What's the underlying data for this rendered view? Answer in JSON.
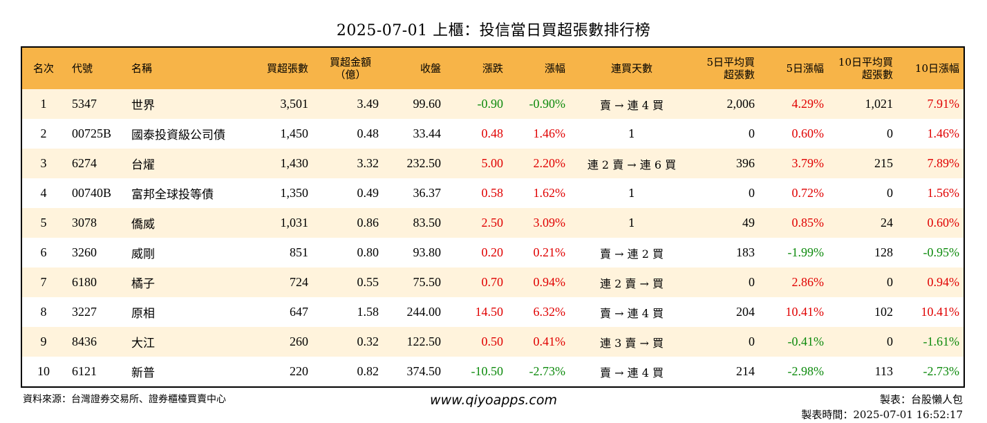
{
  "title": "2025-07-01 上櫃：投信當日買超張數排行榜",
  "colors": {
    "header_bg": "#f7b448",
    "row_alt_bg": "#fff3dc",
    "up": "#e00000",
    "down": "#0c8a0c"
  },
  "headers": {
    "rank": "名次",
    "code": "代號",
    "name": "名稱",
    "net_buy_lots": "買超張數",
    "net_buy_amount": "買超金額（億）",
    "close": "收盤",
    "change": "漲跌",
    "change_pct": "漲幅",
    "consecutive_days": "連買天數",
    "avg5": "5日平均買超張數",
    "chg5": "5日漲幅",
    "avg10": "10日平均買超張數",
    "chg10": "10日漲幅"
  },
  "rows": [
    {
      "rank": "1",
      "code": "5347",
      "name": "世界",
      "lots": "3,501",
      "amount": "3.49",
      "close": "99.60",
      "change": "-0.90",
      "change_pct": "-0.90%",
      "days": "賣 → 連 4 買",
      "avg5": "2,006",
      "chg5": "4.29%",
      "avg10": "1,021",
      "chg10": "7.91%"
    },
    {
      "rank": "2",
      "code": "00725B",
      "name": "國泰投資級公司債",
      "lots": "1,450",
      "amount": "0.48",
      "close": "33.44",
      "change": "0.48",
      "change_pct": "1.46%",
      "days": "1",
      "avg5": "0",
      "chg5": "0.60%",
      "avg10": "0",
      "chg10": "1.46%"
    },
    {
      "rank": "3",
      "code": "6274",
      "name": "台燿",
      "lots": "1,430",
      "amount": "3.32",
      "close": "232.50",
      "change": "5.00",
      "change_pct": "2.20%",
      "days": "連 2 賣 → 連 6 買",
      "avg5": "396",
      "chg5": "3.79%",
      "avg10": "215",
      "chg10": "7.89%"
    },
    {
      "rank": "4",
      "code": "00740B",
      "name": "富邦全球投等債",
      "lots": "1,350",
      "amount": "0.49",
      "close": "36.37",
      "change": "0.58",
      "change_pct": "1.62%",
      "days": "1",
      "avg5": "0",
      "chg5": "0.72%",
      "avg10": "0",
      "chg10": "1.56%"
    },
    {
      "rank": "5",
      "code": "3078",
      "name": "僑威",
      "lots": "1,031",
      "amount": "0.86",
      "close": "83.50",
      "change": "2.50",
      "change_pct": "3.09%",
      "days": "1",
      "avg5": "49",
      "chg5": "0.85%",
      "avg10": "24",
      "chg10": "0.60%"
    },
    {
      "rank": "6",
      "code": "3260",
      "name": "威剛",
      "lots": "851",
      "amount": "0.80",
      "close": "93.80",
      "change": "0.20",
      "change_pct": "0.21%",
      "days": "賣 → 連 2 買",
      "avg5": "183",
      "chg5": "-1.99%",
      "avg10": "128",
      "chg10": "-0.95%"
    },
    {
      "rank": "7",
      "code": "6180",
      "name": "橘子",
      "lots": "724",
      "amount": "0.55",
      "close": "75.50",
      "change": "0.70",
      "change_pct": "0.94%",
      "days": "連 2 賣 → 買",
      "avg5": "0",
      "chg5": "2.86%",
      "avg10": "0",
      "chg10": "0.94%"
    },
    {
      "rank": "8",
      "code": "3227",
      "name": "原相",
      "lots": "647",
      "amount": "1.58",
      "close": "244.00",
      "change": "14.50",
      "change_pct": "6.32%",
      "days": "賣 → 連 4 買",
      "avg5": "204",
      "chg5": "10.41%",
      "avg10": "102",
      "chg10": "10.41%"
    },
    {
      "rank": "9",
      "code": "8436",
      "name": "大江",
      "lots": "260",
      "amount": "0.32",
      "close": "122.50",
      "change": "0.50",
      "change_pct": "0.41%",
      "days": "連 3 賣 → 買",
      "avg5": "0",
      "chg5": "-0.41%",
      "avg10": "0",
      "chg10": "-1.61%"
    },
    {
      "rank": "10",
      "code": "6121",
      "name": "新普",
      "lots": "220",
      "amount": "0.82",
      "close": "374.50",
      "change": "-10.50",
      "change_pct": "-2.73%",
      "days": "賣 → 連 4 買",
      "avg5": "214",
      "chg5": "-2.98%",
      "avg10": "113",
      "chg10": "-2.73%"
    }
  ],
  "footer": {
    "source": "資料來源：台灣證券交易所、證券櫃檯買賣中心",
    "website": "www.qiyoapps.com",
    "maker": "製表：台股懶人包",
    "made_time": "製表時間：2025-07-01 16:52:17"
  }
}
